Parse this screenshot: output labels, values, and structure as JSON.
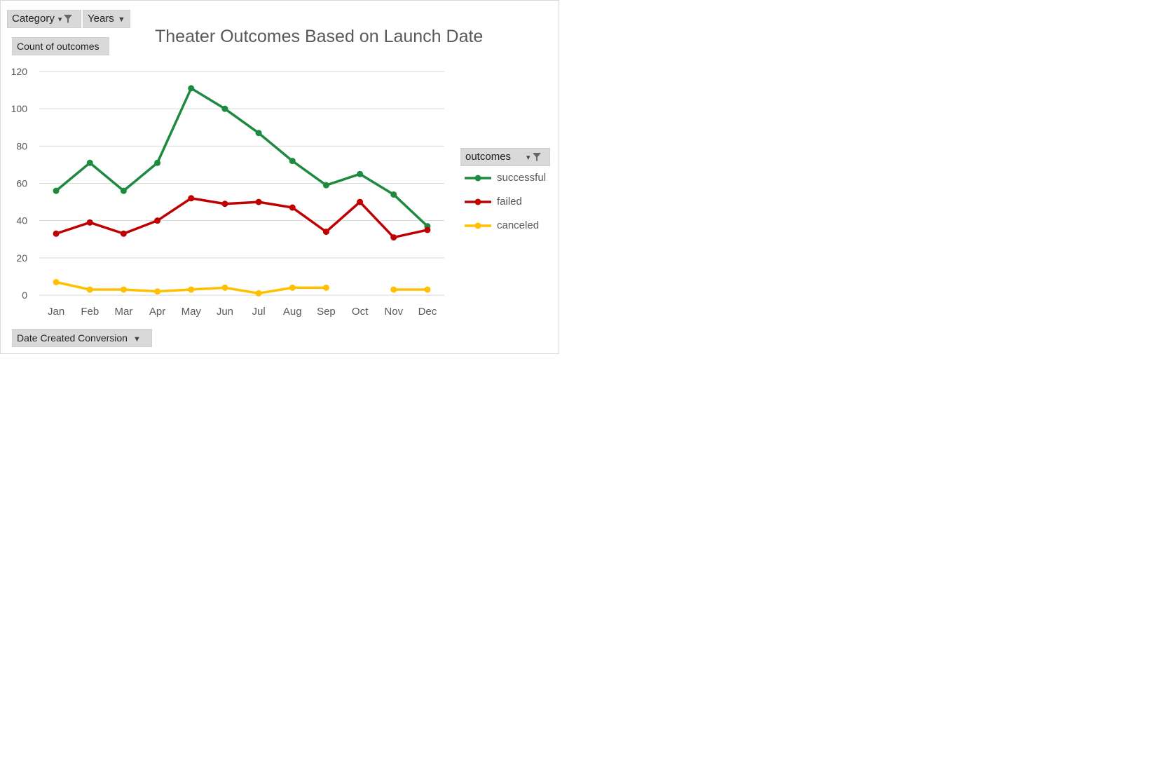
{
  "filters": {
    "category_label": "Category",
    "years_label": "Years",
    "value_field_label": "Count of outcomes",
    "axis_field_label": "Date Created Conversion",
    "legend_field_label": "outcomes"
  },
  "colors": {
    "successful": "#1e8a3f",
    "failed": "#c00000",
    "canceled": "#ffc000",
    "gridline": "#d9d9d9",
    "axis_text": "#595959"
  },
  "chart_data": {
    "type": "line",
    "title": "Theater Outcomes Based on Launch Date",
    "xlabel": "",
    "ylabel": "",
    "categories": [
      "Jan",
      "Feb",
      "Mar",
      "Apr",
      "May",
      "Jun",
      "Jul",
      "Aug",
      "Sep",
      "Oct",
      "Nov",
      "Dec"
    ],
    "yticks": [
      0,
      20,
      40,
      60,
      80,
      100,
      120
    ],
    "ylim": [
      0,
      120
    ],
    "grid": true,
    "legend_position": "right",
    "series": [
      {
        "name": "successful",
        "color": "#1e8a3f",
        "values": [
          56,
          71,
          56,
          71,
          111,
          100,
          87,
          72,
          59,
          65,
          54,
          37
        ]
      },
      {
        "name": "failed",
        "color": "#c00000",
        "values": [
          33,
          39,
          33,
          40,
          52,
          49,
          50,
          47,
          34,
          50,
          31,
          35
        ]
      },
      {
        "name": "canceled",
        "color": "#ffc000",
        "values": [
          7,
          3,
          3,
          2,
          3,
          4,
          1,
          4,
          4,
          null,
          3,
          3
        ]
      }
    ]
  }
}
